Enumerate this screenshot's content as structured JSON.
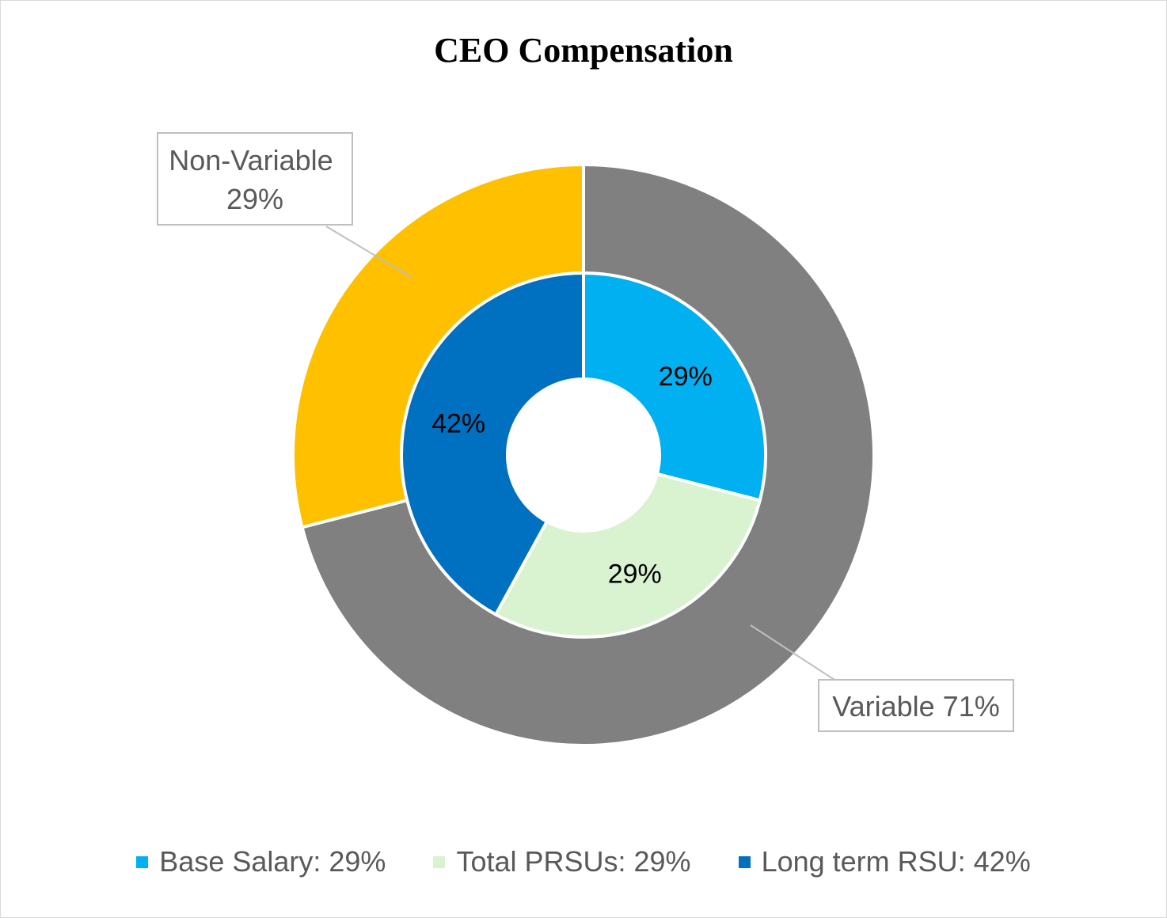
{
  "chart_data": {
    "type": "pie",
    "subtype": "nested-donut",
    "title": "CEO Compensation",
    "outer_ring": [
      {
        "label": "Variable",
        "value": 71,
        "label_text": "Variable 71%",
        "color": "#808080"
      },
      {
        "label": "Non-Variable",
        "value": 29,
        "label_text": "Non-Variable 29%",
        "color": "#FFC000"
      }
    ],
    "inner_ring": [
      {
        "label": "Base Salary",
        "value": 29,
        "label_text": "29%",
        "legend_text": "Base Salary: 29%",
        "color": "#00B0F0"
      },
      {
        "label": "Total PRSUs",
        "value": 29,
        "label_text": "29%",
        "legend_text": "Total PRSUs: 29%",
        "color": "#D9F2D0"
      },
      {
        "label": "Long term RSU",
        "value": 42,
        "label_text": "42%",
        "legend_text": "Long term RSU: 42%",
        "color": "#0070C0"
      }
    ],
    "legend_position": "bottom"
  }
}
